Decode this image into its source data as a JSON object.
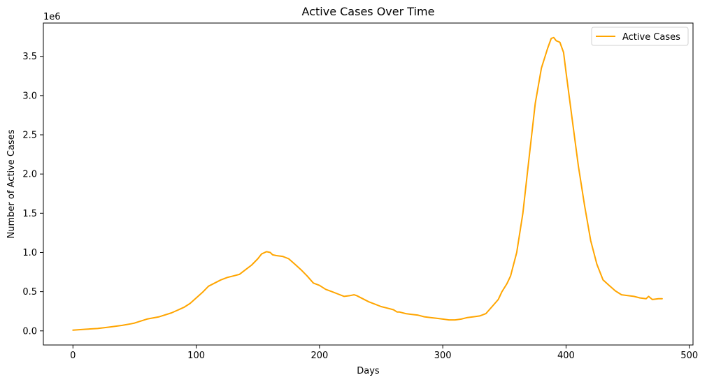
{
  "chart_data": {
    "type": "line",
    "title": "Active Cases Over Time",
    "xlabel": "Days",
    "ylabel": "Number of Active Cases",
    "y_offset_label": "1e6",
    "xlim": [
      -24,
      503
    ],
    "ylim": [
      -180000,
      3925000
    ],
    "x_ticks": [
      0,
      100,
      200,
      300,
      400,
      500
    ],
    "x_tick_labels": [
      "0",
      "100",
      "200",
      "300",
      "400",
      "500"
    ],
    "y_ticks": [
      0,
      500000,
      1000000,
      1500000,
      2000000,
      2500000,
      3000000,
      3500000
    ],
    "y_tick_labels": [
      "0.0",
      "0.5",
      "1.0",
      "1.5",
      "2.0",
      "2.5",
      "3.0",
      "3.5"
    ],
    "grid": false,
    "legend_position": "top-right",
    "series": [
      {
        "name": "Active Cases",
        "color": "#FFA500",
        "x": [
          0,
          10,
          20,
          30,
          40,
          47,
          50,
          60,
          70,
          80,
          90,
          95,
          100,
          105,
          110,
          115,
          120,
          125,
          130,
          135,
          140,
          145,
          150,
          153,
          157,
          160,
          162,
          165,
          170,
          175,
          180,
          185,
          190,
          195,
          200,
          205,
          210,
          215,
          220,
          225,
          228,
          230,
          235,
          240,
          245,
          250,
          255,
          260,
          263,
          265,
          270,
          275,
          280,
          285,
          290,
          295,
          300,
          305,
          310,
          315,
          320,
          325,
          330,
          335,
          340,
          345,
          348,
          352,
          355,
          360,
          365,
          370,
          375,
          380,
          385,
          388,
          390,
          392,
          395,
          398,
          400,
          405,
          410,
          415,
          420,
          425,
          430,
          435,
          440,
          445,
          450,
          455,
          460,
          465,
          467,
          470,
          475,
          478
        ],
        "y": [
          10000,
          20000,
          30000,
          50000,
          70000,
          90000,
          100000,
          150000,
          180000,
          230000,
          300000,
          350000,
          420000,
          490000,
          570000,
          610000,
          650000,
          680000,
          700000,
          720000,
          780000,
          840000,
          920000,
          980000,
          1010000,
          1000000,
          970000,
          960000,
          950000,
          920000,
          850000,
          780000,
          700000,
          610000,
          580000,
          530000,
          500000,
          470000,
          440000,
          450000,
          460000,
          450000,
          410000,
          370000,
          340000,
          310000,
          290000,
          270000,
          240000,
          240000,
          220000,
          210000,
          200000,
          180000,
          170000,
          160000,
          150000,
          140000,
          140000,
          150000,
          170000,
          180000,
          190000,
          220000,
          310000,
          400000,
          500000,
          600000,
          700000,
          1000000,
          1500000,
          2200000,
          2900000,
          3350000,
          3600000,
          3730000,
          3740000,
          3700000,
          3680000,
          3550000,
          3300000,
          2700000,
          2100000,
          1600000,
          1150000,
          850000,
          650000,
          580000,
          510000,
          460000,
          450000,
          440000,
          420000,
          410000,
          440000,
          400000,
          410000,
          410000
        ]
      }
    ]
  }
}
